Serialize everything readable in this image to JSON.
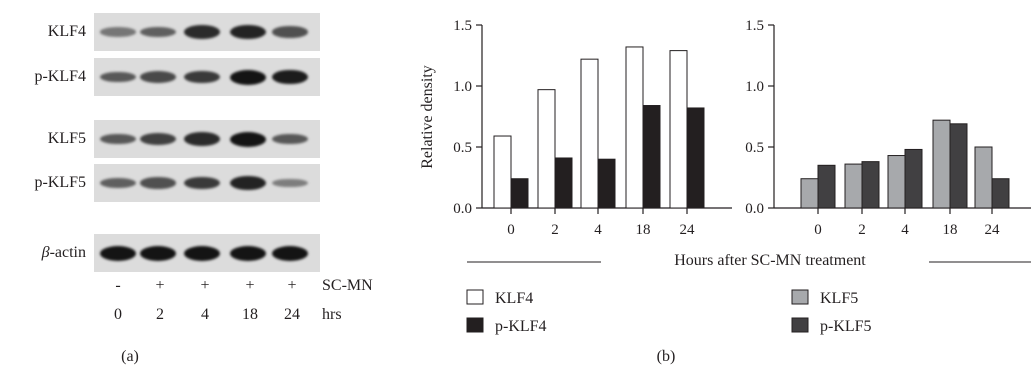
{
  "panel_a": {
    "caption": "(a)",
    "rows": [
      {
        "label": "KLF4",
        "intensities": [
          0.35,
          0.5,
          0.85,
          0.9,
          0.6
        ]
      },
      {
        "label": "p-KLF4",
        "intensities": [
          0.55,
          0.65,
          0.75,
          1.0,
          0.95
        ]
      },
      {
        "label": "KLF5",
        "intensities": [
          0.55,
          0.7,
          0.85,
          1.0,
          0.55
        ]
      },
      {
        "label": "p-KLF5",
        "intensities": [
          0.5,
          0.6,
          0.75,
          0.9,
          0.3
        ]
      },
      {
        "label_italic": "β",
        "label": "-actin",
        "intensities": [
          1.0,
          1.0,
          1.0,
          1.0,
          1.0
        ]
      }
    ],
    "treatment_row": [
      "-",
      "+",
      "+",
      "+",
      "+"
    ],
    "treatment_label": "SC-MN",
    "time_row": [
      "0",
      "2",
      "4",
      "18",
      "24"
    ],
    "time_label": "hrs"
  },
  "panel_b": {
    "caption": "(b)",
    "x_axis_label": "Hours after SC-MN treatment",
    "ylabel": "Relative density",
    "legend_left": [
      {
        "name": "KLF4",
        "color": "#ffffff"
      },
      {
        "name": "p-KLF4",
        "color": "#231f20"
      }
    ],
    "legend_right": [
      {
        "name": "KLF5",
        "color": "#a7a9ac"
      },
      {
        "name": "p-KLF5",
        "color": "#414042"
      }
    ]
  },
  "chart_data": [
    {
      "type": "bar",
      "categories": [
        "0",
        "2",
        "4",
        "18",
        "24"
      ],
      "series": [
        {
          "name": "KLF4",
          "color": "#ffffff",
          "values": [
            0.59,
            0.97,
            1.22,
            1.32,
            1.29
          ]
        },
        {
          "name": "p-KLF4",
          "color": "#231f20",
          "values": [
            0.24,
            0.41,
            0.4,
            0.84,
            0.82
          ]
        }
      ],
      "ylabel": "Relative density",
      "ylim": [
        0,
        1.5
      ],
      "yticks": [
        "0.0",
        "0.5",
        "1.0",
        "1.5"
      ]
    },
    {
      "type": "bar",
      "categories": [
        "0",
        "2",
        "4",
        "18",
        "24"
      ],
      "series": [
        {
          "name": "KLF5",
          "color": "#a7a9ac",
          "values": [
            0.24,
            0.36,
            0.43,
            0.72,
            0.5
          ]
        },
        {
          "name": "p-KLF5",
          "color": "#414042",
          "values": [
            0.35,
            0.38,
            0.48,
            0.69,
            0.24
          ]
        }
      ],
      "ylabel": "",
      "ylim": [
        0,
        1.5
      ],
      "yticks": [
        "0.0",
        "0.5",
        "1.0",
        "1.5"
      ]
    }
  ]
}
